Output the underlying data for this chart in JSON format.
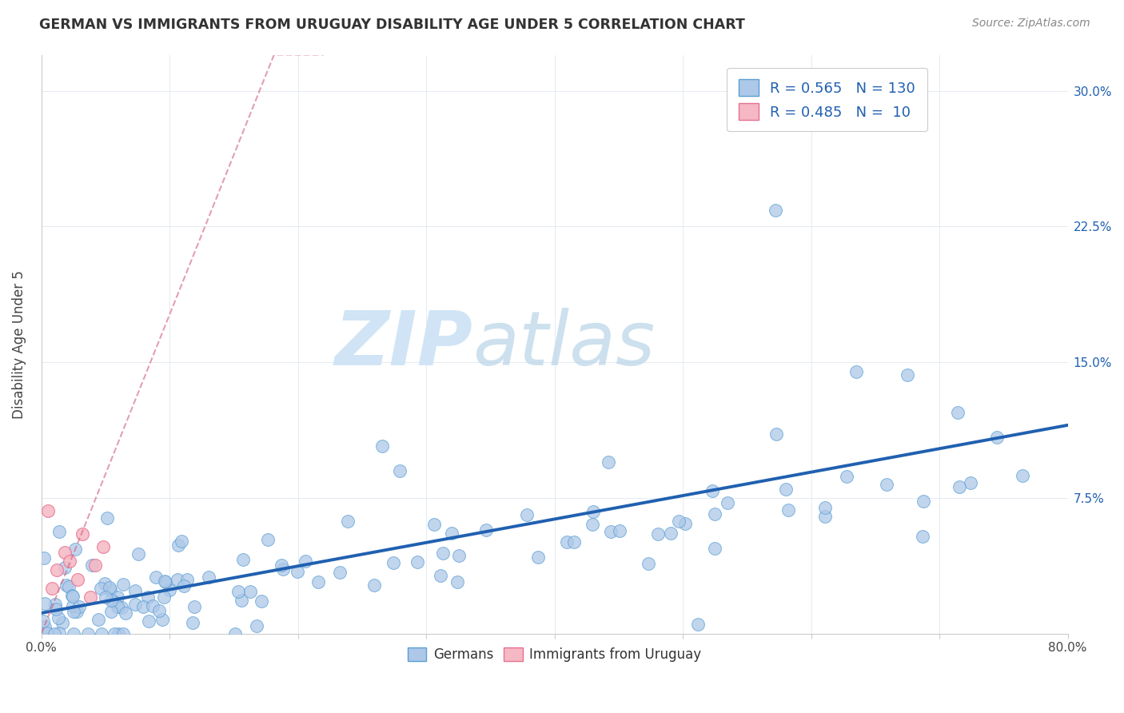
{
  "title": "GERMAN VS IMMIGRANTS FROM URUGUAY DISABILITY AGE UNDER 5 CORRELATION CHART",
  "source": "Source: ZipAtlas.com",
  "ylabel": "Disability Age Under 5",
  "xlim": [
    0.0,
    0.8
  ],
  "ylim": [
    0.0,
    0.32
  ],
  "xticks": [
    0.0,
    0.1,
    0.2,
    0.3,
    0.4,
    0.5,
    0.6,
    0.7,
    0.8
  ],
  "xtick_labels": [
    "0.0%",
    "",
    "",
    "",
    "",
    "",
    "",
    "",
    "80.0%"
  ],
  "yticks": [
    0.0,
    0.075,
    0.15,
    0.225,
    0.3
  ],
  "ytick_labels": [
    "",
    "7.5%",
    "15.0%",
    "22.5%",
    "30.0%"
  ],
  "R_blue": 0.565,
  "N_blue": 130,
  "R_pink": 0.485,
  "N_pink": 10,
  "blue_color": "#adc8e8",
  "pink_color": "#f5b8c4",
  "blue_edge_color": "#5a9fd4",
  "pink_edge_color": "#e87090",
  "blue_line_color": "#2060b0",
  "pink_line_color": "#d06080",
  "title_color": "#333333",
  "source_color": "#888888",
  "label_color": "#444444",
  "yaxis_color": "#2060b0",
  "watermark_color": "#d0e4f5",
  "background_color": "#ffffff",
  "grid_color": "#e0e8f0",
  "title_fontsize": 12.5,
  "legend_fontsize": 13,
  "axis_fontsize": 11
}
